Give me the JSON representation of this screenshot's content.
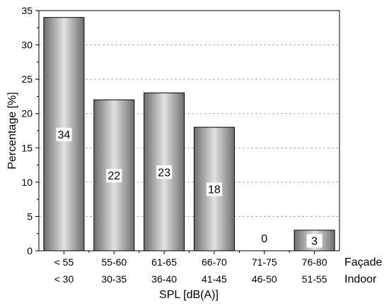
{
  "chart_data": {
    "type": "bar",
    "categories_row1": [
      "< 55",
      "55-60",
      "61-65",
      "66-70",
      "71-75",
      "76-80"
    ],
    "categories_row2": [
      "< 30",
      "30-35",
      "36-40",
      "41-45",
      "46-50",
      "51-55"
    ],
    "row1_label": "Façade",
    "row2_label": "Indoor",
    "values": [
      34,
      22,
      23,
      18,
      0,
      3
    ],
    "data_labels": [
      "34",
      "22",
      "23",
      "18",
      "0",
      "3"
    ],
    "xlabel": "SPL [dB(A)]",
    "ylabel": "Percentage [%]",
    "ylim": [
      0,
      35
    ],
    "yticks": [
      0,
      5,
      10,
      15,
      20,
      25,
      30,
      35
    ],
    "grid": "horizontal dashed",
    "colors": {
      "bar_dark": "#6e6e6e",
      "bar_light": "#e2e2e2",
      "grid": "#aaaaaa"
    }
  }
}
